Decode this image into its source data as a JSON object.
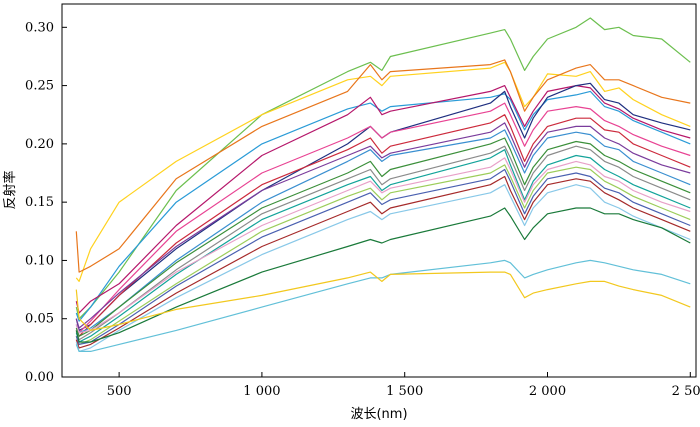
{
  "chart_data": {
    "type": "line",
    "title": "",
    "xlabel": "波长(nm)",
    "ylabel": "反射率",
    "xlim": [
      300,
      2520
    ],
    "ylim": [
      0,
      0.32
    ],
    "x_ticks": [
      500,
      1000,
      1500,
      2000,
      2500
    ],
    "x_tick_labels": [
      "500",
      "1 000",
      "1 500",
      "2 000",
      "2 500"
    ],
    "y_ticks": [
      0.0,
      0.05,
      0.1,
      0.15,
      0.2,
      0.25,
      0.3
    ],
    "y_tick_labels": [
      "0.00",
      "0.05",
      "0.10",
      "0.15",
      "0.20",
      "0.25",
      "0.30"
    ],
    "grid": false,
    "legend": "none",
    "x": [
      350,
      360,
      400,
      500,
      700,
      1000,
      1300,
      1380,
      1420,
      1450,
      1800,
      1850,
      1870,
      1920,
      1950,
      2000,
      2100,
      2150,
      2200,
      2250,
      2300,
      2400,
      2500
    ],
    "series": [
      {
        "color": "#6cbf4f",
        "values": [
          0.06,
          0.05,
          0.06,
          0.09,
          0.16,
          0.225,
          0.262,
          0.27,
          0.263,
          0.275,
          0.295,
          0.298,
          0.29,
          0.263,
          0.275,
          0.29,
          0.3,
          0.308,
          0.298,
          0.3,
          0.293,
          0.29,
          0.27
        ]
      },
      {
        "color": "#ffd21f",
        "values": [
          0.085,
          0.082,
          0.11,
          0.15,
          0.185,
          0.225,
          0.255,
          0.258,
          0.25,
          0.258,
          0.265,
          0.27,
          0.262,
          0.232,
          0.24,
          0.26,
          0.258,
          0.262,
          0.245,
          0.248,
          0.238,
          0.225,
          0.215
        ]
      },
      {
        "color": "#e8761c",
        "values": [
          0.125,
          0.09,
          0.095,
          0.11,
          0.17,
          0.215,
          0.245,
          0.268,
          0.255,
          0.262,
          0.268,
          0.272,
          0.262,
          0.228,
          0.24,
          0.255,
          0.265,
          0.268,
          0.255,
          0.255,
          0.25,
          0.24,
          0.235
        ]
      },
      {
        "color": "#2a9bd7",
        "values": [
          0.055,
          0.048,
          0.06,
          0.095,
          0.15,
          0.2,
          0.23,
          0.235,
          0.228,
          0.232,
          0.24,
          0.243,
          0.238,
          0.212,
          0.225,
          0.238,
          0.242,
          0.245,
          0.232,
          0.228,
          0.22,
          0.21,
          0.2
        ]
      },
      {
        "color": "#b5176b",
        "values": [
          0.065,
          0.055,
          0.065,
          0.08,
          0.13,
          0.19,
          0.225,
          0.24,
          0.225,
          0.228,
          0.245,
          0.25,
          0.24,
          0.215,
          0.228,
          0.245,
          0.25,
          0.248,
          0.235,
          0.23,
          0.222,
          0.212,
          0.205
        ]
      },
      {
        "color": "#1f2f80",
        "values": [
          0.05,
          0.04,
          0.045,
          0.07,
          0.11,
          0.16,
          0.2,
          0.215,
          0.205,
          0.21,
          0.235,
          0.245,
          0.232,
          0.205,
          0.222,
          0.24,
          0.25,
          0.252,
          0.238,
          0.235,
          0.225,
          0.218,
          0.212
        ]
      },
      {
        "color": "#e84393",
        "values": [
          0.045,
          0.038,
          0.048,
          0.075,
          0.125,
          0.175,
          0.205,
          0.215,
          0.205,
          0.21,
          0.228,
          0.235,
          0.225,
          0.198,
          0.212,
          0.228,
          0.232,
          0.23,
          0.22,
          0.215,
          0.208,
          0.198,
          0.19
        ]
      },
      {
        "color": "#cc2a3c",
        "values": [
          0.04,
          0.035,
          0.045,
          0.07,
          0.115,
          0.165,
          0.195,
          0.205,
          0.192,
          0.198,
          0.218,
          0.225,
          0.215,
          0.185,
          0.2,
          0.215,
          0.222,
          0.222,
          0.212,
          0.21,
          0.2,
          0.19,
          0.18
        ]
      },
      {
        "color": "#7a3c9c",
        "values": [
          0.05,
          0.042,
          0.05,
          0.072,
          0.112,
          0.16,
          0.19,
          0.198,
          0.188,
          0.192,
          0.21,
          0.218,
          0.208,
          0.18,
          0.195,
          0.21,
          0.215,
          0.215,
          0.205,
          0.2,
          0.192,
          0.182,
          0.175
        ]
      },
      {
        "color": "#3a8fd0",
        "values": [
          0.045,
          0.038,
          0.042,
          0.06,
          0.1,
          0.15,
          0.185,
          0.195,
          0.185,
          0.19,
          0.205,
          0.212,
          0.202,
          0.175,
          0.19,
          0.205,
          0.21,
          0.208,
          0.198,
          0.195,
          0.185,
          0.175,
          0.165
        ]
      },
      {
        "color": "#3b8f3a",
        "values": [
          0.042,
          0.035,
          0.04,
          0.06,
          0.098,
          0.145,
          0.175,
          0.185,
          0.172,
          0.178,
          0.2,
          0.205,
          0.195,
          0.165,
          0.18,
          0.195,
          0.202,
          0.2,
          0.19,
          0.185,
          0.178,
          0.168,
          0.158
        ]
      },
      {
        "color": "#8b8b8b",
        "values": [
          0.04,
          0.032,
          0.038,
          0.055,
          0.092,
          0.14,
          0.17,
          0.178,
          0.165,
          0.17,
          0.192,
          0.198,
          0.188,
          0.16,
          0.175,
          0.19,
          0.198,
          0.195,
          0.185,
          0.18,
          0.172,
          0.162,
          0.152
        ]
      },
      {
        "color": "#13a39a",
        "values": [
          0.038,
          0.03,
          0.035,
          0.052,
          0.088,
          0.135,
          0.165,
          0.172,
          0.16,
          0.165,
          0.188,
          0.195,
          0.182,
          0.152,
          0.168,
          0.182,
          0.19,
          0.188,
          0.178,
          0.172,
          0.165,
          0.155,
          0.145
        ]
      },
      {
        "color": "#e8a0c8",
        "values": [
          0.045,
          0.038,
          0.04,
          0.055,
          0.09,
          0.13,
          0.16,
          0.168,
          0.158,
          0.162,
          0.18,
          0.188,
          0.178,
          0.15,
          0.165,
          0.178,
          0.185,
          0.182,
          0.172,
          0.168,
          0.16,
          0.15,
          0.142
        ]
      },
      {
        "color": "#9ccd5a",
        "values": [
          0.035,
          0.028,
          0.032,
          0.048,
          0.08,
          0.125,
          0.155,
          0.162,
          0.152,
          0.158,
          0.175,
          0.182,
          0.172,
          0.145,
          0.16,
          0.175,
          0.18,
          0.178,
          0.168,
          0.162,
          0.155,
          0.145,
          0.135
        ]
      },
      {
        "color": "#4a60b0",
        "values": [
          0.035,
          0.028,
          0.03,
          0.045,
          0.078,
          0.12,
          0.15,
          0.158,
          0.148,
          0.152,
          0.17,
          0.178,
          0.168,
          0.14,
          0.155,
          0.17,
          0.175,
          0.172,
          0.162,
          0.158,
          0.15,
          0.14,
          0.13
        ]
      },
      {
        "color": "#a52a2a",
        "values": [
          0.032,
          0.025,
          0.028,
          0.042,
          0.072,
          0.112,
          0.142,
          0.15,
          0.14,
          0.145,
          0.165,
          0.172,
          0.16,
          0.135,
          0.15,
          0.165,
          0.17,
          0.168,
          0.158,
          0.152,
          0.145,
          0.135,
          0.125
        ]
      },
      {
        "color": "#88c8e8",
        "values": [
          0.03,
          0.022,
          0.025,
          0.04,
          0.068,
          0.105,
          0.135,
          0.142,
          0.135,
          0.14,
          0.158,
          0.165,
          0.155,
          0.13,
          0.145,
          0.158,
          0.165,
          0.162,
          0.15,
          0.145,
          0.138,
          0.128,
          0.118
        ]
      },
      {
        "color": "#1a7a3a",
        "values": [
          0.04,
          0.03,
          0.03,
          0.038,
          0.06,
          0.09,
          0.112,
          0.118,
          0.115,
          0.118,
          0.138,
          0.145,
          0.138,
          0.118,
          0.128,
          0.14,
          0.145,
          0.145,
          0.14,
          0.14,
          0.135,
          0.128,
          0.115
        ]
      },
      {
        "color": "#62c0d8",
        "values": [
          0.028,
          0.022,
          0.022,
          0.028,
          0.04,
          0.06,
          0.08,
          0.085,
          0.085,
          0.088,
          0.098,
          0.1,
          0.098,
          0.085,
          0.088,
          0.092,
          0.098,
          0.1,
          0.098,
          0.095,
          0.092,
          0.088,
          0.08
        ]
      },
      {
        "color": "#f2c81e",
        "values": [
          0.075,
          0.05,
          0.04,
          0.045,
          0.058,
          0.07,
          0.085,
          0.09,
          0.082,
          0.088,
          0.09,
          0.09,
          0.088,
          0.068,
          0.072,
          0.075,
          0.08,
          0.082,
          0.082,
          0.078,
          0.075,
          0.07,
          0.06
        ]
      }
    ]
  }
}
